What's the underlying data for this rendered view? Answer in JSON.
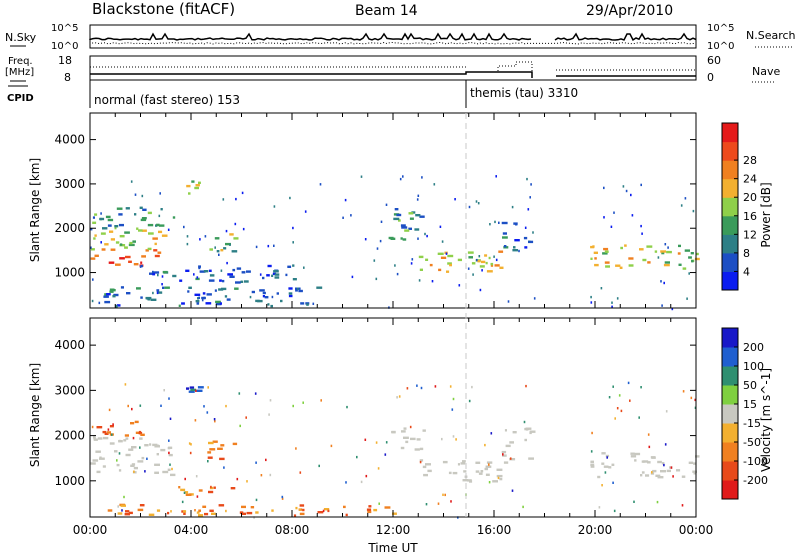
{
  "header": {
    "station": "Blackstone (fitACF)",
    "beam": "Beam 14",
    "date": "29/Apr/2010"
  },
  "panels": {
    "noise": {
      "left_label": "N.Sky",
      "right_label": "N.Search",
      "left_ticks": [
        "10^5",
        "10^0"
      ],
      "right_ticks": [
        "10^5",
        "10^0"
      ]
    },
    "freq": {
      "left_label_1": "Freq.",
      "left_label_2": "[MHz]",
      "right_label": "Nave",
      "left_ticks": [
        "18",
        "8"
      ],
      "right_ticks": [
        "60",
        "0"
      ]
    },
    "cpid": {
      "label": "CPID",
      "modes": [
        {
          "text": "normal (fast stereo) 153",
          "start_hour": 0
        },
        {
          "text": "themis (tau) 3310",
          "start_hour": 15
        }
      ]
    }
  },
  "chart_data": [
    {
      "type": "heatmap",
      "name": "power",
      "ylabel": "Slant Range [km]",
      "y_ticks": [
        "1000",
        "2000",
        "3000",
        "4000"
      ],
      "ylim": [
        200,
        4600
      ],
      "x_range_hours": [
        0,
        24
      ],
      "colorbar": {
        "label": "Power [dB]",
        "ticks": [
          "4",
          "8",
          "12",
          "16",
          "20",
          "24",
          "28"
        ],
        "range": [
          0,
          30
        ],
        "colors": [
          "#0a1cf0",
          "#1c4fc4",
          "#2d7f86",
          "#3a9b5a",
          "#8fd04a",
          "#f3b030",
          "#f08020",
          "#ee4a1c",
          "#e51a1a"
        ]
      },
      "regions": [
        {
          "t0": 0.0,
          "t1": 2.4,
          "r0": 1150,
          "r1": 1350,
          "level": 0.9
        },
        {
          "t0": 0.0,
          "t1": 2.8,
          "r0": 1350,
          "r1": 1550,
          "level": 0.75
        },
        {
          "t0": 0.0,
          "t1": 3.2,
          "r0": 1550,
          "r1": 2000,
          "level": 0.55
        },
        {
          "t0": 0.0,
          "t1": 3.5,
          "r0": 2000,
          "r1": 2500,
          "level": 0.3
        },
        {
          "t0": 3.8,
          "t1": 4.3,
          "r0": 2800,
          "r1": 3100,
          "level": 0.45
        },
        {
          "t0": 4.5,
          "t1": 5.8,
          "r0": 1500,
          "r1": 1900,
          "level": 0.45
        },
        {
          "t0": 2.0,
          "t1": 8.2,
          "r0": 800,
          "r1": 1200,
          "level": 0.15
        },
        {
          "t0": 0.5,
          "t1": 9.0,
          "r0": 250,
          "r1": 700,
          "level": 0.2
        },
        {
          "t0": 11.8,
          "t1": 13.2,
          "r0": 1700,
          "r1": 2500,
          "level": 0.3
        },
        {
          "t0": 13.0,
          "t1": 16.5,
          "r0": 1000,
          "r1": 1500,
          "level": 0.6
        },
        {
          "t0": 16.3,
          "t1": 17.5,
          "r0": 1500,
          "r1": 2200,
          "level": 0.2
        },
        {
          "t0": 19.8,
          "t1": 24.0,
          "r0": 1100,
          "r1": 1650,
          "level": 0.55
        }
      ]
    },
    {
      "type": "heatmap",
      "name": "velocity",
      "ylabel": "Slant Range [km]",
      "y_ticks": [
        "1000",
        "2000",
        "3000",
        "4000"
      ],
      "ylim": [
        200,
        4600
      ],
      "x_range_hours": [
        0,
        24
      ],
      "xlabel": "Time UT",
      "x_ticks": [
        "00:00",
        "04:00",
        "08:00",
        "12:00",
        "16:00",
        "20:00",
        "00:00"
      ],
      "colorbar": {
        "label": "Velocity [m s^-1]",
        "ticks": [
          "200",
          "100",
          "50",
          "15",
          "-15",
          "-50",
          "-100",
          "-200"
        ],
        "colors": [
          "#1818c8",
          "#1f5fd0",
          "#2f8f70",
          "#7fd040",
          "#c8c8c0",
          "#f3b030",
          "#f08020",
          "#e84a1a",
          "#e01a1a"
        ]
      },
      "regions": [
        {
          "t0": 0.0,
          "t1": 3.2,
          "r0": 1150,
          "r1": 2000,
          "vel": "ground"
        },
        {
          "t0": 0.0,
          "t1": 2.0,
          "r0": 2000,
          "r1": 2400,
          "vel": "away"
        },
        {
          "t0": 3.8,
          "t1": 4.3,
          "r0": 2800,
          "r1": 3100,
          "vel": "toward"
        },
        {
          "t0": 4.5,
          "t1": 5.8,
          "r0": 1500,
          "r1": 1900,
          "vel": "away"
        },
        {
          "t0": 3.0,
          "t1": 6.0,
          "r0": 700,
          "r1": 900,
          "vel": "away"
        },
        {
          "t0": 11.8,
          "t1": 13.2,
          "r0": 1700,
          "r1": 2200,
          "vel": "ground"
        },
        {
          "t0": 13.0,
          "t1": 16.5,
          "r0": 1000,
          "r1": 1500,
          "vel": "ground"
        },
        {
          "t0": 16.3,
          "t1": 17.5,
          "r0": 1500,
          "r1": 2200,
          "vel": "ground"
        },
        {
          "t0": 19.8,
          "t1": 24.0,
          "r0": 1100,
          "r1": 1650,
          "vel": "ground"
        },
        {
          "t0": 0.5,
          "t1": 12.0,
          "r0": 250,
          "r1": 500,
          "vel": "away"
        }
      ]
    }
  ]
}
